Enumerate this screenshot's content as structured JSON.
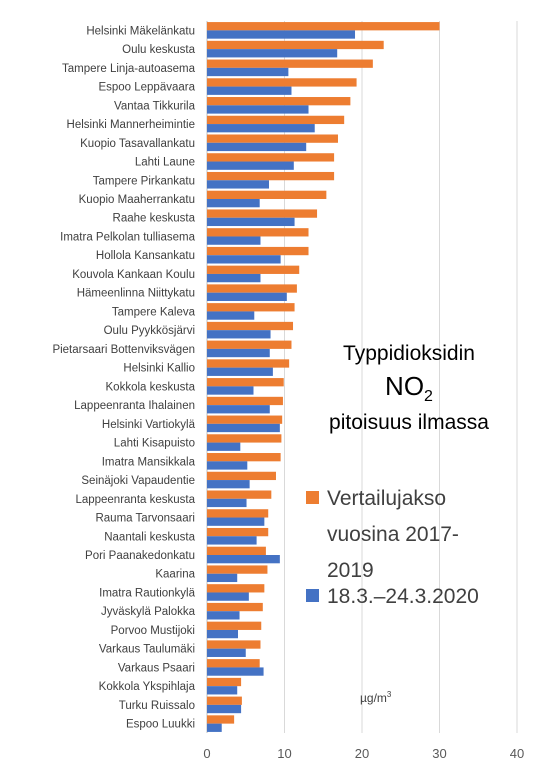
{
  "chart_data": {
    "type": "bar",
    "orientation": "horizontal",
    "title": {
      "line1": "Typpidioksidin",
      "line2_main": "NO",
      "line2_sub": "2",
      "line3": "pitoisuus ilmassa"
    },
    "unit": {
      "base": "µg/m",
      "sup": "3"
    },
    "xlim": [
      0,
      40
    ],
    "xticks": [
      "0",
      "10",
      "20",
      "30",
      "40"
    ],
    "xtick_values": [
      0,
      10,
      20,
      30,
      40
    ],
    "grid": "vertical gridlines",
    "legend_position": "right",
    "categories": [
      "Helsinki Mäkelänkatu",
      "Oulu keskusta",
      "Tampere Linja-autoasema",
      "Espoo Leppävaara",
      "Vantaa Tikkurila",
      "Helsinki Mannerheimintie",
      "Kuopio Tasavallankatu",
      "Lahti Laune",
      "Tampere Pirkankatu",
      "Kuopio Maaherrankatu",
      "Raahe keskusta",
      "Imatra Pelkolan tulliasema",
      "Hollola Kansankatu",
      "Kouvola Kankaan Koulu",
      "Hämeenlinna Niittykatu",
      "Tampere Kaleva",
      "Oulu Pyykkösjärvi",
      "Pietarsaari Bottenviksvägen",
      "Helsinki Kallio",
      "Kokkola keskusta",
      "Lappeenranta Ihalainen",
      "Helsinki Vartiokylä",
      "Lahti Kisapuisto",
      "Imatra Mansikkala",
      "Seinäjoki Vapaudentie",
      "Lappeenranta keskusta",
      "Rauma Tarvonsaari",
      "Naantali keskusta",
      "Pori Paanakedonkatu",
      "Kaarina",
      "Imatra Rautionkylä",
      "Jyväskylä Palokka",
      "Porvoo Mustijoki",
      "Varkaus Taulumäki",
      "Varkaus Psaari",
      "Kokkola Ykspihlaja",
      "Turku Ruissalo",
      "Espoo Luukki"
    ],
    "series": [
      {
        "legend_label": "Vertailujakso vuosina 2017-2019",
        "legend_lines": [
          "Vertailujakso",
          "vuosina 2017-",
          "2019"
        ],
        "color": "#ED7D31",
        "values": [
          30.0,
          22.8,
          21.4,
          19.3,
          18.5,
          17.7,
          16.9,
          16.4,
          16.4,
          15.4,
          14.2,
          13.1,
          13.1,
          11.9,
          11.6,
          11.3,
          11.1,
          10.9,
          10.6,
          9.9,
          9.8,
          9.7,
          9.6,
          9.5,
          8.9,
          8.3,
          7.9,
          7.9,
          7.6,
          7.8,
          7.4,
          7.2,
          7.0,
          6.9,
          6.8,
          4.4,
          4.5,
          3.5
        ]
      },
      {
        "legend_label": "18.3.–24.3.2020",
        "legend_lines": [
          "18.3.–24.3.2020"
        ],
        "color": "#4472C4",
        "values": [
          19.1,
          16.8,
          10.5,
          10.9,
          13.1,
          13.9,
          12.8,
          11.2,
          8.0,
          6.8,
          11.3,
          6.9,
          9.5,
          6.9,
          10.3,
          6.1,
          8.2,
          8.1,
          8.5,
          6.0,
          8.1,
          9.4,
          4.3,
          5.2,
          5.5,
          5.1,
          7.4,
          6.4,
          9.4,
          3.9,
          5.4,
          4.2,
          4.0,
          5.0,
          7.3,
          3.9,
          4.4,
          1.9
        ]
      }
    ]
  }
}
